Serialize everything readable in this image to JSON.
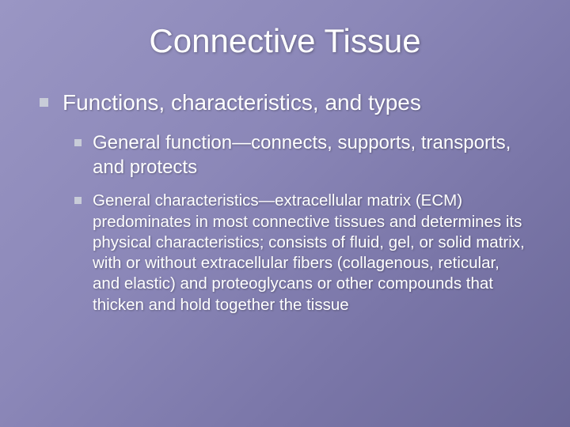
{
  "slide": {
    "title": "Connective Tissue",
    "background_gradient": [
      "#9a96c4",
      "#6b6898"
    ],
    "title_fontsize": 42,
    "text_color": "#ffffff",
    "bullet_color": "#c8ccd8",
    "level1": {
      "text": "Functions, characteristics, and types",
      "fontsize": 28
    },
    "level2": [
      {
        "text": "General function—connects, supports, transports, and protects",
        "fontsize": 24
      },
      {
        "text": "General characteristics—extracellular matrix (ECM) predominates in most connective tissues and determines its physical characteristics; consists of fluid, gel, or solid matrix, with or without extracellular fibers (collagenous, reticular, and elastic) and proteoglycans or other compounds that thicken and hold together the tissue",
        "fontsize": 20.5
      }
    ]
  }
}
